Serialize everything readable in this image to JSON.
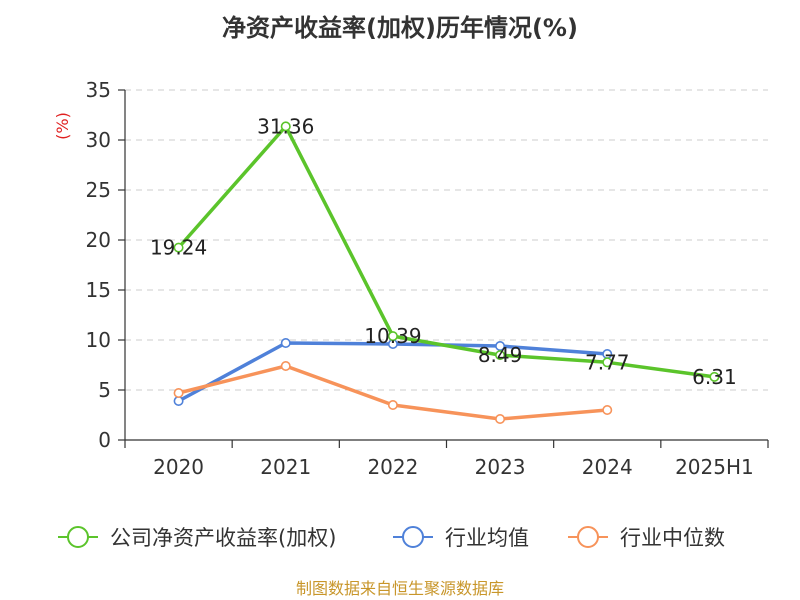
{
  "chart_data": {
    "type": "line",
    "title": "净资产收益率(加权)历年情况(%)",
    "unit_label": "(%)",
    "categories": [
      "2020",
      "2021",
      "2022",
      "2023",
      "2024",
      "2025H1"
    ],
    "ylim": [
      0,
      35
    ],
    "yticks": [
      0,
      5,
      10,
      15,
      20,
      25,
      30,
      35
    ],
    "grid": true,
    "legend_position": "bottom",
    "series": [
      {
        "name": "公司净资产收益率(加权)",
        "color": "#5bc42b",
        "values": [
          19.24,
          31.36,
          10.39,
          8.49,
          7.77,
          6.31
        ],
        "labels": [
          "19.24",
          "31.36",
          "10.39",
          "8.49",
          "7.77",
          "6.31"
        ]
      },
      {
        "name": "行业均值",
        "color": "#4f81d9",
        "values": [
          3.9,
          9.7,
          9.6,
          9.4,
          8.6,
          null
        ]
      },
      {
        "name": "行业中位数",
        "color": "#f7935a",
        "values": [
          4.7,
          7.4,
          3.5,
          2.1,
          3.0,
          null
        ]
      }
    ]
  },
  "source_text": "制图数据来自恒生聚源数据库",
  "colors": {
    "unit_label": "#e02020",
    "source": "#c8962a",
    "axis": "#333333",
    "grid": "#cccccc"
  }
}
